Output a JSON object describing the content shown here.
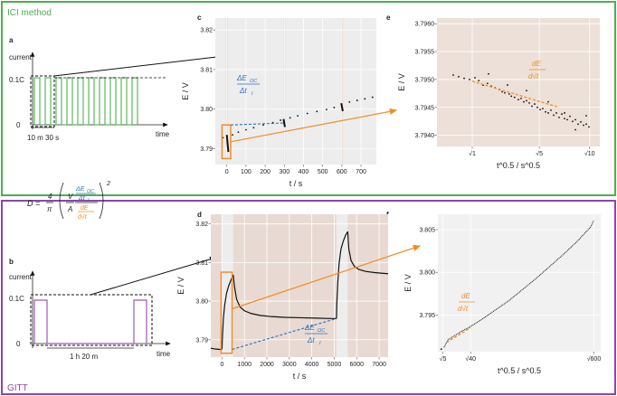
{
  "sections": {
    "top_label": "ICI method",
    "bottom_label": "GITT",
    "top_color": "#4caf50",
    "bottom_color": "#8e44ad"
  },
  "equation": {
    "lhs": "D =",
    "coef_num": "4",
    "coef_den": "π",
    "v": "V",
    "a": "A",
    "deoc": "ΔE",
    "deoc_sub": "OC",
    "dt": "Δt",
    "dt_sub": "I",
    "de": "dE",
    "dsqrt": "d√t",
    "power": "2"
  },
  "panels": {
    "a": {
      "letter": "a",
      "ylabel": "current",
      "xlabel": "time",
      "y_ticks": [
        "0.1C",
        "0"
      ],
      "annotation": "10 m 30 s",
      "color": "#5cb85c"
    },
    "b": {
      "letter": "b",
      "ylabel": "current",
      "xlabel": "time",
      "y_ticks": [
        "0.1C",
        "0"
      ],
      "annotation": "1 h 20 m",
      "color": "#9b59b6"
    },
    "c": {
      "letter": "c",
      "annotation_num": "ΔE",
      "annotation_sub": "OC",
      "annotation_den": "Δt",
      "annotation_den_sub": "I"
    },
    "d": {
      "letter": "d",
      "annotation_num": "ΔE",
      "annotation_sub": "OC",
      "annotation_den": "Δt",
      "annotation_den_sub": "I"
    },
    "e": {
      "letter": "e",
      "annotation_num": "dE",
      "annotation_den": "d√t"
    },
    "f": {
      "letter": "f",
      "annotation_num": "dE",
      "annotation_den": "d√t"
    }
  },
  "chart_data": [
    {
      "id": "c",
      "type": "scatter",
      "xlabel": "t / s",
      "ylabel": "E / V",
      "xlim": [
        -60,
        780
      ],
      "ylim": [
        3.786,
        3.823
      ],
      "x_ticks": [
        "0",
        "100",
        "200",
        "300",
        "400",
        "500",
        "600",
        "700"
      ],
      "x_tick_values": [
        0,
        100,
        200,
        300,
        400,
        500,
        600,
        700
      ],
      "y_ticks": [
        "3.79",
        "3.80",
        "3.81",
        "3.82"
      ],
      "y_tick_values": [
        3.79,
        3.8,
        3.81,
        3.82
      ],
      "rest_periods": [
        [
          -5,
          5
        ],
        [
          296,
          305
        ],
        [
          597,
          606
        ]
      ],
      "segments": [
        {
          "x0": 0,
          "x1": 8,
          "y0": 3.7935,
          "y1": 3.7892
        },
        {
          "x0": 296,
          "x1": 303,
          "y0": 3.7975,
          "y1": 3.7955
        },
        {
          "x0": 597,
          "x1": 605,
          "y0": 3.8015,
          "y1": 3.7995
        }
      ],
      "points": [
        [
          30,
          3.7935
        ],
        [
          60,
          3.7942
        ],
        [
          100,
          3.7948
        ],
        [
          140,
          3.7953
        ],
        [
          190,
          3.796
        ],
        [
          240,
          3.7966
        ],
        [
          280,
          3.7972
        ],
        [
          330,
          3.7978
        ],
        [
          370,
          3.7983
        ],
        [
          420,
          3.7989
        ],
        [
          470,
          3.7994
        ],
        [
          520,
          3.7999
        ],
        [
          560,
          3.8004
        ],
        [
          640,
          3.8018
        ],
        [
          680,
          3.8022
        ],
        [
          720,
          3.8026
        ],
        [
          760,
          3.803
        ],
        [
          -20,
          3.7928
        ]
      ]
    },
    {
      "id": "e",
      "type": "scatter",
      "xlabel": "t^0.5 / s^0.5",
      "ylabel": "E / V",
      "xlim": [
        0.35,
        3.35
      ],
      "ylim": [
        3.7938,
        3.7961
      ],
      "x_ticks": [
        "√1",
        "√5",
        "√10"
      ],
      "x_tick_values": [
        1,
        2.236,
        3.162
      ],
      "y_ticks": [
        "3.7940",
        "3.7945",
        "3.7950",
        "3.7955",
        "3.7960"
      ],
      "y_tick_values": [
        3.794,
        3.7945,
        3.795,
        3.7955,
        3.796
      ],
      "fit_line": {
        "x0": 1.0,
        "x1": 2.6,
        "y0": 3.79497,
        "y1": 3.7945
      },
      "points": [
        [
          0.65,
          3.79508
        ],
        [
          0.75,
          3.79505
        ],
        [
          0.85,
          3.79502
        ],
        [
          0.95,
          3.795
        ],
        [
          1.05,
          3.79503
        ],
        [
          1.12,
          3.79498
        ],
        [
          1.2,
          3.7949
        ],
        [
          1.28,
          3.79493
        ],
        [
          1.35,
          3.79488
        ],
        [
          1.42,
          3.79485
        ],
        [
          1.5,
          3.79482
        ],
        [
          1.55,
          3.79478
        ],
        [
          1.6,
          3.79476
        ],
        [
          1.68,
          3.79474
        ],
        [
          1.72,
          3.7947
        ],
        [
          1.78,
          3.79468
        ],
        [
          1.85,
          3.79464
        ],
        [
          1.9,
          3.79466
        ],
        [
          1.95,
          3.7946
        ],
        [
          2.0,
          3.79462
        ],
        [
          2.05,
          3.79458
        ],
        [
          2.1,
          3.79452
        ],
        [
          2.15,
          3.79456
        ],
        [
          2.2,
          3.7945
        ],
        [
          2.25,
          3.79446
        ],
        [
          2.3,
          3.79448
        ],
        [
          2.35,
          3.79442
        ],
        [
          2.4,
          3.7944
        ],
        [
          2.45,
          3.79445
        ],
        [
          2.5,
          3.79436
        ],
        [
          2.55,
          3.7944
        ],
        [
          2.6,
          3.79432
        ],
        [
          2.65,
          3.79438
        ],
        [
          2.7,
          3.7943
        ],
        [
          2.75,
          3.79428
        ],
        [
          2.8,
          3.79434
        ],
        [
          2.85,
          3.79425
        ],
        [
          2.9,
          3.79428
        ],
        [
          2.95,
          3.7942
        ],
        [
          3.0,
          3.79424
        ],
        [
          3.05,
          3.79418
        ],
        [
          3.1,
          3.7942
        ],
        [
          3.15,
          3.79415
        ],
        [
          1.3,
          3.7951
        ],
        [
          1.65,
          3.7949
        ],
        [
          2.0,
          3.7948
        ],
        [
          2.4,
          3.7946
        ],
        [
          2.7,
          3.7944
        ],
        [
          2.9,
          3.7941
        ],
        [
          3.1,
          3.79435
        ]
      ]
    },
    {
      "id": "d",
      "type": "line",
      "xlabel": "t / s",
      "ylabel": "E / V",
      "xlim": [
        -500,
        7400
      ],
      "ylim": [
        3.7855,
        3.8225
      ],
      "x_ticks": [
        "0",
        "1000",
        "2000",
        "3000",
        "4000",
        "5000",
        "6000",
        "7000"
      ],
      "x_tick_values": [
        0,
        1000,
        2000,
        3000,
        4000,
        5000,
        6000,
        7000
      ],
      "y_ticks": [
        "3.79",
        "3.80",
        "3.81",
        "3.82"
      ],
      "y_tick_values": [
        3.79,
        3.8,
        3.81,
        3.82
      ],
      "rest_periods": [
        [
          -500,
          0
        ],
        [
          500,
          5100
        ],
        [
          5600,
          7400
        ]
      ],
      "series": [
        {
          "x": [
            -500,
            -300,
            -100,
            0,
            20,
            60,
            120,
            200,
            300,
            400,
            500
          ],
          "y": [
            3.7878,
            3.7876,
            3.7875,
            3.7876,
            3.791,
            3.7955,
            3.799,
            3.802,
            3.804,
            3.8055,
            3.8068
          ]
        },
        {
          "x": [
            500,
            550,
            650,
            800,
            1000,
            1300,
            1700,
            2200,
            2800,
            3500,
            4200,
            4800,
            5100
          ],
          "y": [
            3.8068,
            3.804,
            3.8005,
            3.7985,
            3.7975,
            3.7968,
            3.7963,
            3.796,
            3.7958,
            3.7957,
            3.7956,
            3.7955,
            3.7955
          ]
        },
        {
          "x": [
            5100,
            5120,
            5160,
            5220,
            5300,
            5400,
            5500,
            5600
          ],
          "y": [
            3.7955,
            3.8,
            3.805,
            3.81,
            3.8135,
            3.8155,
            3.817,
            3.818
          ]
        },
        {
          "x": [
            5600,
            5650,
            5750,
            5900,
            6100,
            6400,
            6800,
            7200,
            7400
          ],
          "y": [
            3.818,
            3.8135,
            3.8105,
            3.809,
            3.8082,
            3.8077,
            3.8074,
            3.8072,
            3.8071
          ]
        }
      ]
    },
    {
      "id": "f",
      "type": "scatter",
      "xlabel": "t^0.5 / s^0.5",
      "ylabel": "E / V",
      "xlim": [
        1.5,
        25.5
      ],
      "ylim": [
        3.7907,
        3.8068
      ],
      "x_ticks": [
        "√5",
        "√40",
        "√600"
      ],
      "x_tick_values": [
        2.236,
        6.325,
        24.495
      ],
      "y_ticks": [
        "3.795",
        "3.800",
        "3.805"
      ],
      "y_tick_values": [
        3.795,
        3.8,
        3.805
      ],
      "fit_line": {
        "x0": 2.8,
        "x1": 6.3,
        "y0": 3.7918,
        "y1": 3.7935
      },
      "curve": {
        "x": [
          2.4,
          3,
          4,
          5,
          6,
          7,
          8,
          10,
          12,
          14,
          16,
          18,
          20,
          22,
          24,
          24.5
        ],
        "y": [
          3.7912,
          3.7921,
          3.7926,
          3.7931,
          3.7935,
          3.794,
          3.7945,
          3.7956,
          3.7967,
          3.798,
          3.7993,
          3.8007,
          3.8021,
          3.8036,
          3.8053,
          3.8061
        ]
      },
      "points": [
        [
          2.0,
          3.791
        ]
      ]
    }
  ]
}
